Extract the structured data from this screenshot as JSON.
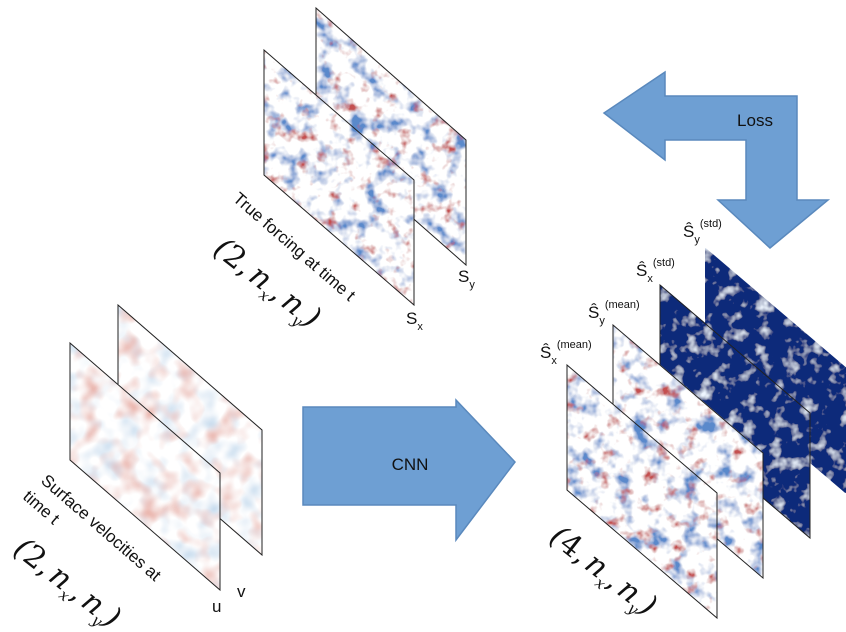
{
  "forcing_label": "True forcing at time t",
  "forcing_shape": {
    "open": "(",
    "lead": "2",
    "comma": ",",
    "n": "n",
    "sub_x": "x",
    "sub_y": "y",
    "close": ")"
  },
  "forcing_panels": [
    {
      "base": "S",
      "sub": "x"
    },
    {
      "base": "S",
      "sub": "y"
    }
  ],
  "input_label": [
    "Surface velocities at",
    "time t"
  ],
  "input_shape": {
    "open": "(",
    "lead": "2",
    "comma": ",",
    "n": "n",
    "sub_x": "x",
    "sub_y": "y",
    "close": ")"
  },
  "input_panels": [
    "u",
    "v"
  ],
  "model": "CNN",
  "loss": "Loss",
  "output_panels": [
    {
      "base": "Ŝ",
      "sub": "x",
      "sup": "(mean)"
    },
    {
      "base": "Ŝ",
      "sub": "y",
      "sup": "(mean)"
    },
    {
      "base": "Ŝ",
      "sub": "x",
      "sup": "(std)"
    },
    {
      "base": "Ŝ",
      "sub": "y",
      "sup": "(std)"
    }
  ],
  "output_shape": {
    "open": "(",
    "lead": "4",
    "comma": ",",
    "n": "n",
    "sub_x": "x",
    "sub_y": "y",
    "close": ")"
  }
}
